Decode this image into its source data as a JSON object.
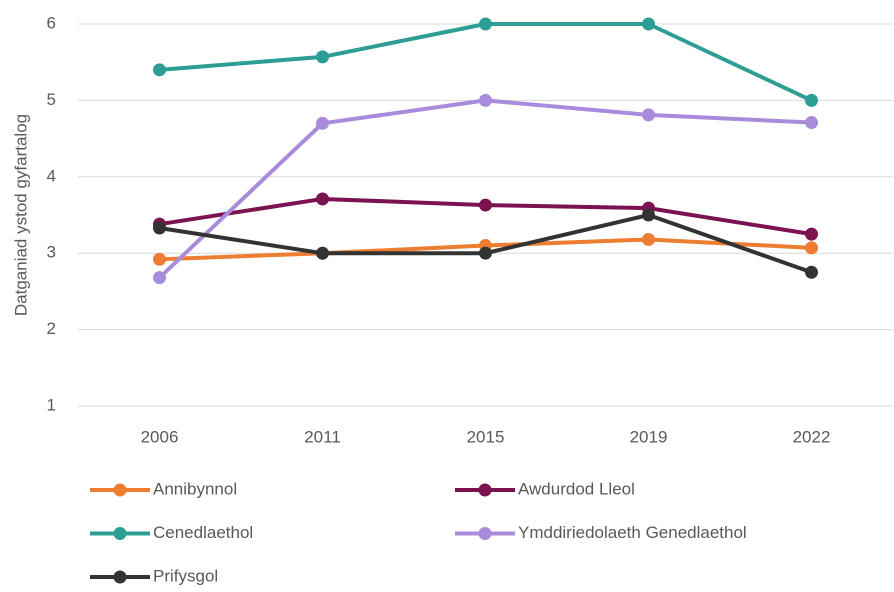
{
  "chart_data": {
    "type": "line",
    "ylabel": "Datganiad ystod gyfartalog",
    "categories": [
      "2006",
      "2011",
      "2015",
      "2019",
      "2022"
    ],
    "series": [
      {
        "name": "Annibynnol",
        "color": "#ed7d31",
        "values": [
          2.92,
          3.0,
          3.1,
          3.18,
          3.07
        ]
      },
      {
        "name": "Awdurdod Lleol",
        "color": "#7b1350",
        "values": [
          3.38,
          3.71,
          3.63,
          3.59,
          3.25
        ]
      },
      {
        "name": "Cenedlaethol",
        "color": "#2e9e94",
        "values": [
          5.4,
          5.57,
          6,
          6,
          5
        ]
      },
      {
        "name": "Ymddiriedolaeth Genedlaethol",
        "color": "#a98bdb",
        "values": [
          2.68,
          4.7,
          5.0,
          4.81,
          4.71
        ]
      },
      {
        "name": "Prifysgol",
        "color": "#333333",
        "values": [
          3.33,
          3.0,
          3.0,
          3.5,
          2.75
        ]
      }
    ],
    "ylim": [
      1,
      6
    ],
    "yticks": [
      1,
      2,
      3,
      4,
      5,
      6
    ],
    "grid": true,
    "legend": "bottom"
  }
}
